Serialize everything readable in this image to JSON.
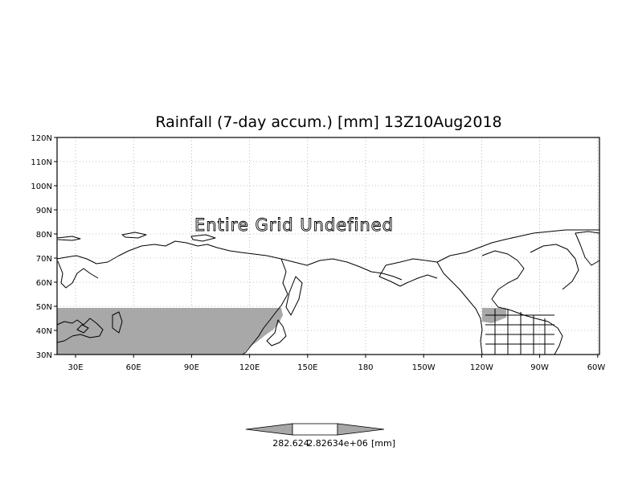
{
  "title": "Rainfall (7-day accum.) [mm] 13Z10Aug2018",
  "overlay_text": "Entire Grid Undefined",
  "lat_labels": [
    "120N",
    "110N",
    "100N",
    "90N",
    "80N",
    "70N",
    "60N",
    "50N",
    "40N",
    "30N"
  ],
  "lon_labels": [
    "30E",
    "60E",
    "90E",
    "120E",
    "150E",
    "180",
    "150W",
    "120W",
    "90W",
    "60W"
  ],
  "colorbar": {
    "low_label": "282.624",
    "high_label": "2.82634e+06",
    "unit_label": "[mm]"
  },
  "colors": {
    "shaded_region": "#a8a8a8",
    "coastline": "#000000",
    "background": "#ffffff"
  }
}
